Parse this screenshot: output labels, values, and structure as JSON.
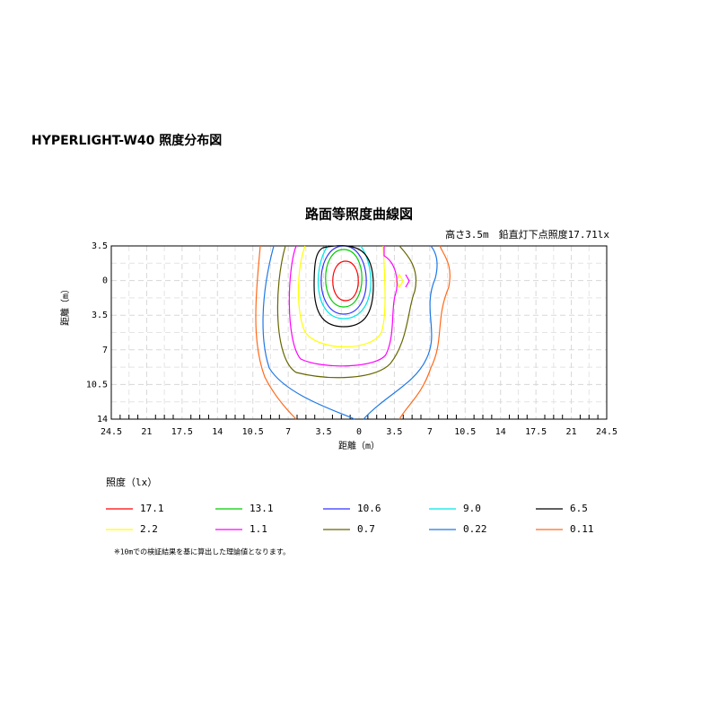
{
  "chart_data": {
    "type": "contour",
    "heading": "HYPERLIGHT-W40 照度分布図",
    "title": "路面等照度曲線図",
    "subtitle": "高さ3.5m　鉛直灯下点照度17.71lx",
    "xlabel": "距離（m）",
    "ylabel": "距離（m）",
    "legend_title": "照度（lx）",
    "note": "※10mでの検証結果を基に算出した理論値となります。",
    "xlim": [
      -24.5,
      24.5
    ],
    "xticks": [
      {
        "value": -24.5,
        "label": "24.5"
      },
      {
        "value": -21,
        "label": "21"
      },
      {
        "value": -17.5,
        "label": "17.5"
      },
      {
        "value": -14,
        "label": "14"
      },
      {
        "value": -10.5,
        "label": "10.5"
      },
      {
        "value": -7,
        "label": "7"
      },
      {
        "value": -3.5,
        "label": "3.5"
      },
      0,
      3.5,
      7,
      10.5,
      14,
      17.5,
      21,
      24.5
    ],
    "ylim": [
      -3.5,
      14
    ],
    "y_inverted": true,
    "yticks": [
      {
        "value": -3.5,
        "label": "3.5"
      },
      0,
      3.5,
      7,
      10.5,
      14
    ],
    "grid": true,
    "series": [
      {
        "value": 17.1,
        "color": "#ff0000"
      },
      {
        "value": 13.1,
        "color": "#00cc00"
      },
      {
        "value": 10.6,
        "color": "#3333ff"
      },
      {
        "value": 9,
        "label": "9.0",
        "color": "#00e5e5"
      },
      {
        "value": 6.5,
        "color": "#000000"
      },
      {
        "value": 2.2,
        "color": "#ffff00"
      },
      {
        "value": 1.1,
        "color": "#ff00ff"
      },
      {
        "value": 0.7,
        "color": "#666600"
      },
      {
        "value": 0.22,
        "color": "#1e78e6"
      },
      {
        "value": 0.11,
        "color": "#ff6a1a"
      }
    ]
  }
}
